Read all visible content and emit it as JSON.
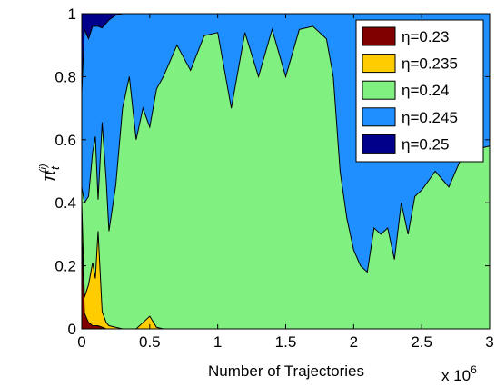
{
  "chart_data": {
    "type": "area",
    "stacked": true,
    "title": "",
    "xlabel": "Number of Trajectories",
    "ylabel_symbol": "π",
    "ylabel_sub": "t",
    "ylabel_sup": "(i)",
    "x_multiplier": "x 10",
    "x_multiplier_exp": "6",
    "xlim": [
      0,
      3
    ],
    "ylim": [
      0,
      1
    ],
    "xticks": [
      "0",
      "0.5",
      "1",
      "1.5",
      "2",
      "2.5",
      "3"
    ],
    "yticks": [
      "0",
      "0.2",
      "0.4",
      "0.6",
      "0.8",
      "1"
    ],
    "legend_position": "top-right",
    "x": [
      0,
      0.02,
      0.05,
      0.08,
      0.1,
      0.12,
      0.15,
      0.18,
      0.2,
      0.25,
      0.3,
      0.35,
      0.4,
      0.45,
      0.5,
      0.55,
      0.6,
      0.7,
      0.8,
      0.9,
      1.0,
      1.1,
      1.2,
      1.3,
      1.4,
      1.5,
      1.6,
      1.7,
      1.8,
      1.85,
      1.9,
      1.95,
      2.0,
      2.05,
      2.1,
      2.15,
      2.2,
      2.25,
      2.3,
      2.35,
      2.4,
      2.45,
      2.5,
      2.6,
      2.7,
      2.8,
      2.9,
      3.0
    ],
    "series": [
      {
        "name": "η=0.23",
        "color": "#800000",
        "values": [
          0.3,
          0.05,
          0.02,
          0.01,
          0.01,
          0.01,
          0.005,
          0,
          0,
          0,
          0,
          0,
          0,
          0,
          0,
          0,
          0,
          0,
          0,
          0,
          0,
          0,
          0,
          0,
          0,
          0,
          0,
          0,
          0,
          0,
          0,
          0,
          0,
          0,
          0,
          0,
          0,
          0,
          0,
          0,
          0,
          0,
          0,
          0,
          0,
          0,
          0,
          0
        ]
      },
      {
        "name": "η=0.235",
        "color": "#ffcc00",
        "values": [
          0.1,
          0.05,
          0.12,
          0.2,
          0.15,
          0.3,
          0.05,
          0.02,
          0.01,
          0.005,
          0,
          0,
          0,
          0.02,
          0.04,
          0.005,
          0,
          0,
          0,
          0,
          0,
          0,
          0,
          0,
          0,
          0,
          0,
          0,
          0,
          0,
          0,
          0,
          0,
          0,
          0,
          0,
          0,
          0,
          0,
          0,
          0,
          0,
          0,
          0,
          0,
          0,
          0,
          0
        ]
      },
      {
        "name": "η=0.24",
        "color": "#80f080",
        "values": [
          0.05,
          0.3,
          0.28,
          0.35,
          0.45,
          0.1,
          0.6,
          0.45,
          0.3,
          0.45,
          0.7,
          0.8,
          0.6,
          0.68,
          0.6,
          0.76,
          0.8,
          0.9,
          0.82,
          0.93,
          0.94,
          0.7,
          0.94,
          0.8,
          0.95,
          0.8,
          0.95,
          0.96,
          0.92,
          0.8,
          0.5,
          0.35,
          0.25,
          0.2,
          0.18,
          0.32,
          0.3,
          0.32,
          0.22,
          0.4,
          0.3,
          0.42,
          0.44,
          0.5,
          0.45,
          0.55,
          0.57,
          0.58
        ]
      },
      {
        "name": "η=0.245",
        "color": "#1f8fff",
        "values": [
          0.3,
          0.55,
          0.5,
          0.4,
          0.35,
          0.55,
          0.3,
          0.5,
          0.67,
          0.54,
          0.3,
          0.2,
          0.4,
          0.3,
          0.36,
          0.24,
          0.2,
          0.1,
          0.18,
          0.07,
          0.06,
          0.3,
          0.06,
          0.2,
          0.05,
          0.2,
          0.05,
          0.04,
          0.08,
          0.2,
          0.5,
          0.65,
          0.75,
          0.8,
          0.82,
          0.68,
          0.7,
          0.68,
          0.78,
          0.6,
          0.7,
          0.58,
          0.56,
          0.5,
          0.55,
          0.45,
          0.43,
          0.42
        ]
      },
      {
        "name": "η=0.25",
        "color": "#00008b",
        "values": [
          0.25,
          0.05,
          0.08,
          0.04,
          0.04,
          0.04,
          0.045,
          0.03,
          0.02,
          0.005,
          0,
          0,
          0,
          0,
          0,
          0,
          0,
          0,
          0,
          0,
          0,
          0,
          0,
          0,
          0,
          0,
          0,
          0,
          0,
          0,
          0,
          0,
          0,
          0,
          0,
          0,
          0,
          0,
          0,
          0,
          0,
          0,
          0,
          0,
          0,
          0,
          0,
          0
        ]
      }
    ]
  }
}
